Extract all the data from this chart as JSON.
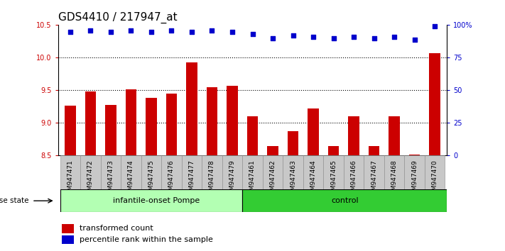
{
  "title": "GDS4410 / 217947_at",
  "samples": [
    "GSM947471",
    "GSM947472",
    "GSM947473",
    "GSM947474",
    "GSM947475",
    "GSM947476",
    "GSM947477",
    "GSM947478",
    "GSM947479",
    "GSM947461",
    "GSM947462",
    "GSM947463",
    "GSM947464",
    "GSM947465",
    "GSM947466",
    "GSM947467",
    "GSM947468",
    "GSM947469",
    "GSM947470"
  ],
  "bar_values": [
    9.27,
    9.48,
    9.28,
    9.52,
    9.38,
    9.45,
    9.93,
    9.55,
    9.57,
    9.1,
    8.65,
    8.87,
    9.22,
    8.65,
    9.1,
    8.65,
    9.1,
    8.52,
    10.07
  ],
  "percentile_values": [
    95,
    96,
    95,
    96,
    95,
    96,
    95,
    96,
    95,
    93,
    90,
    92,
    91,
    90,
    91,
    90,
    91,
    89,
    99
  ],
  "bar_color": "#cc0000",
  "dot_color": "#0000cc",
  "ylim_left": [
    8.5,
    10.5
  ],
  "ylim_right": [
    0,
    100
  ],
  "yticks_left": [
    8.5,
    9.0,
    9.5,
    10.0,
    10.5
  ],
  "yticks_right": [
    0,
    25,
    50,
    75,
    100
  ],
  "group1_label": "infantile-onset Pompe",
  "group2_label": "control",
  "group1_color": "#b3ffb3",
  "group2_color": "#33cc33",
  "group1_count": 9,
  "group2_count": 10,
  "disease_state_label": "disease state",
  "legend1_label": "transformed count",
  "legend2_label": "percentile rank within the sample",
  "bar_width": 0.55,
  "background_color": "#ffffff",
  "dotted_lines": [
    9.0,
    9.5,
    10.0
  ],
  "title_fontsize": 11,
  "tick_fontsize": 7,
  "label_fontsize": 8,
  "xtick_bg_color": "#c8c8c8",
  "xtick_edge_color": "#888888"
}
